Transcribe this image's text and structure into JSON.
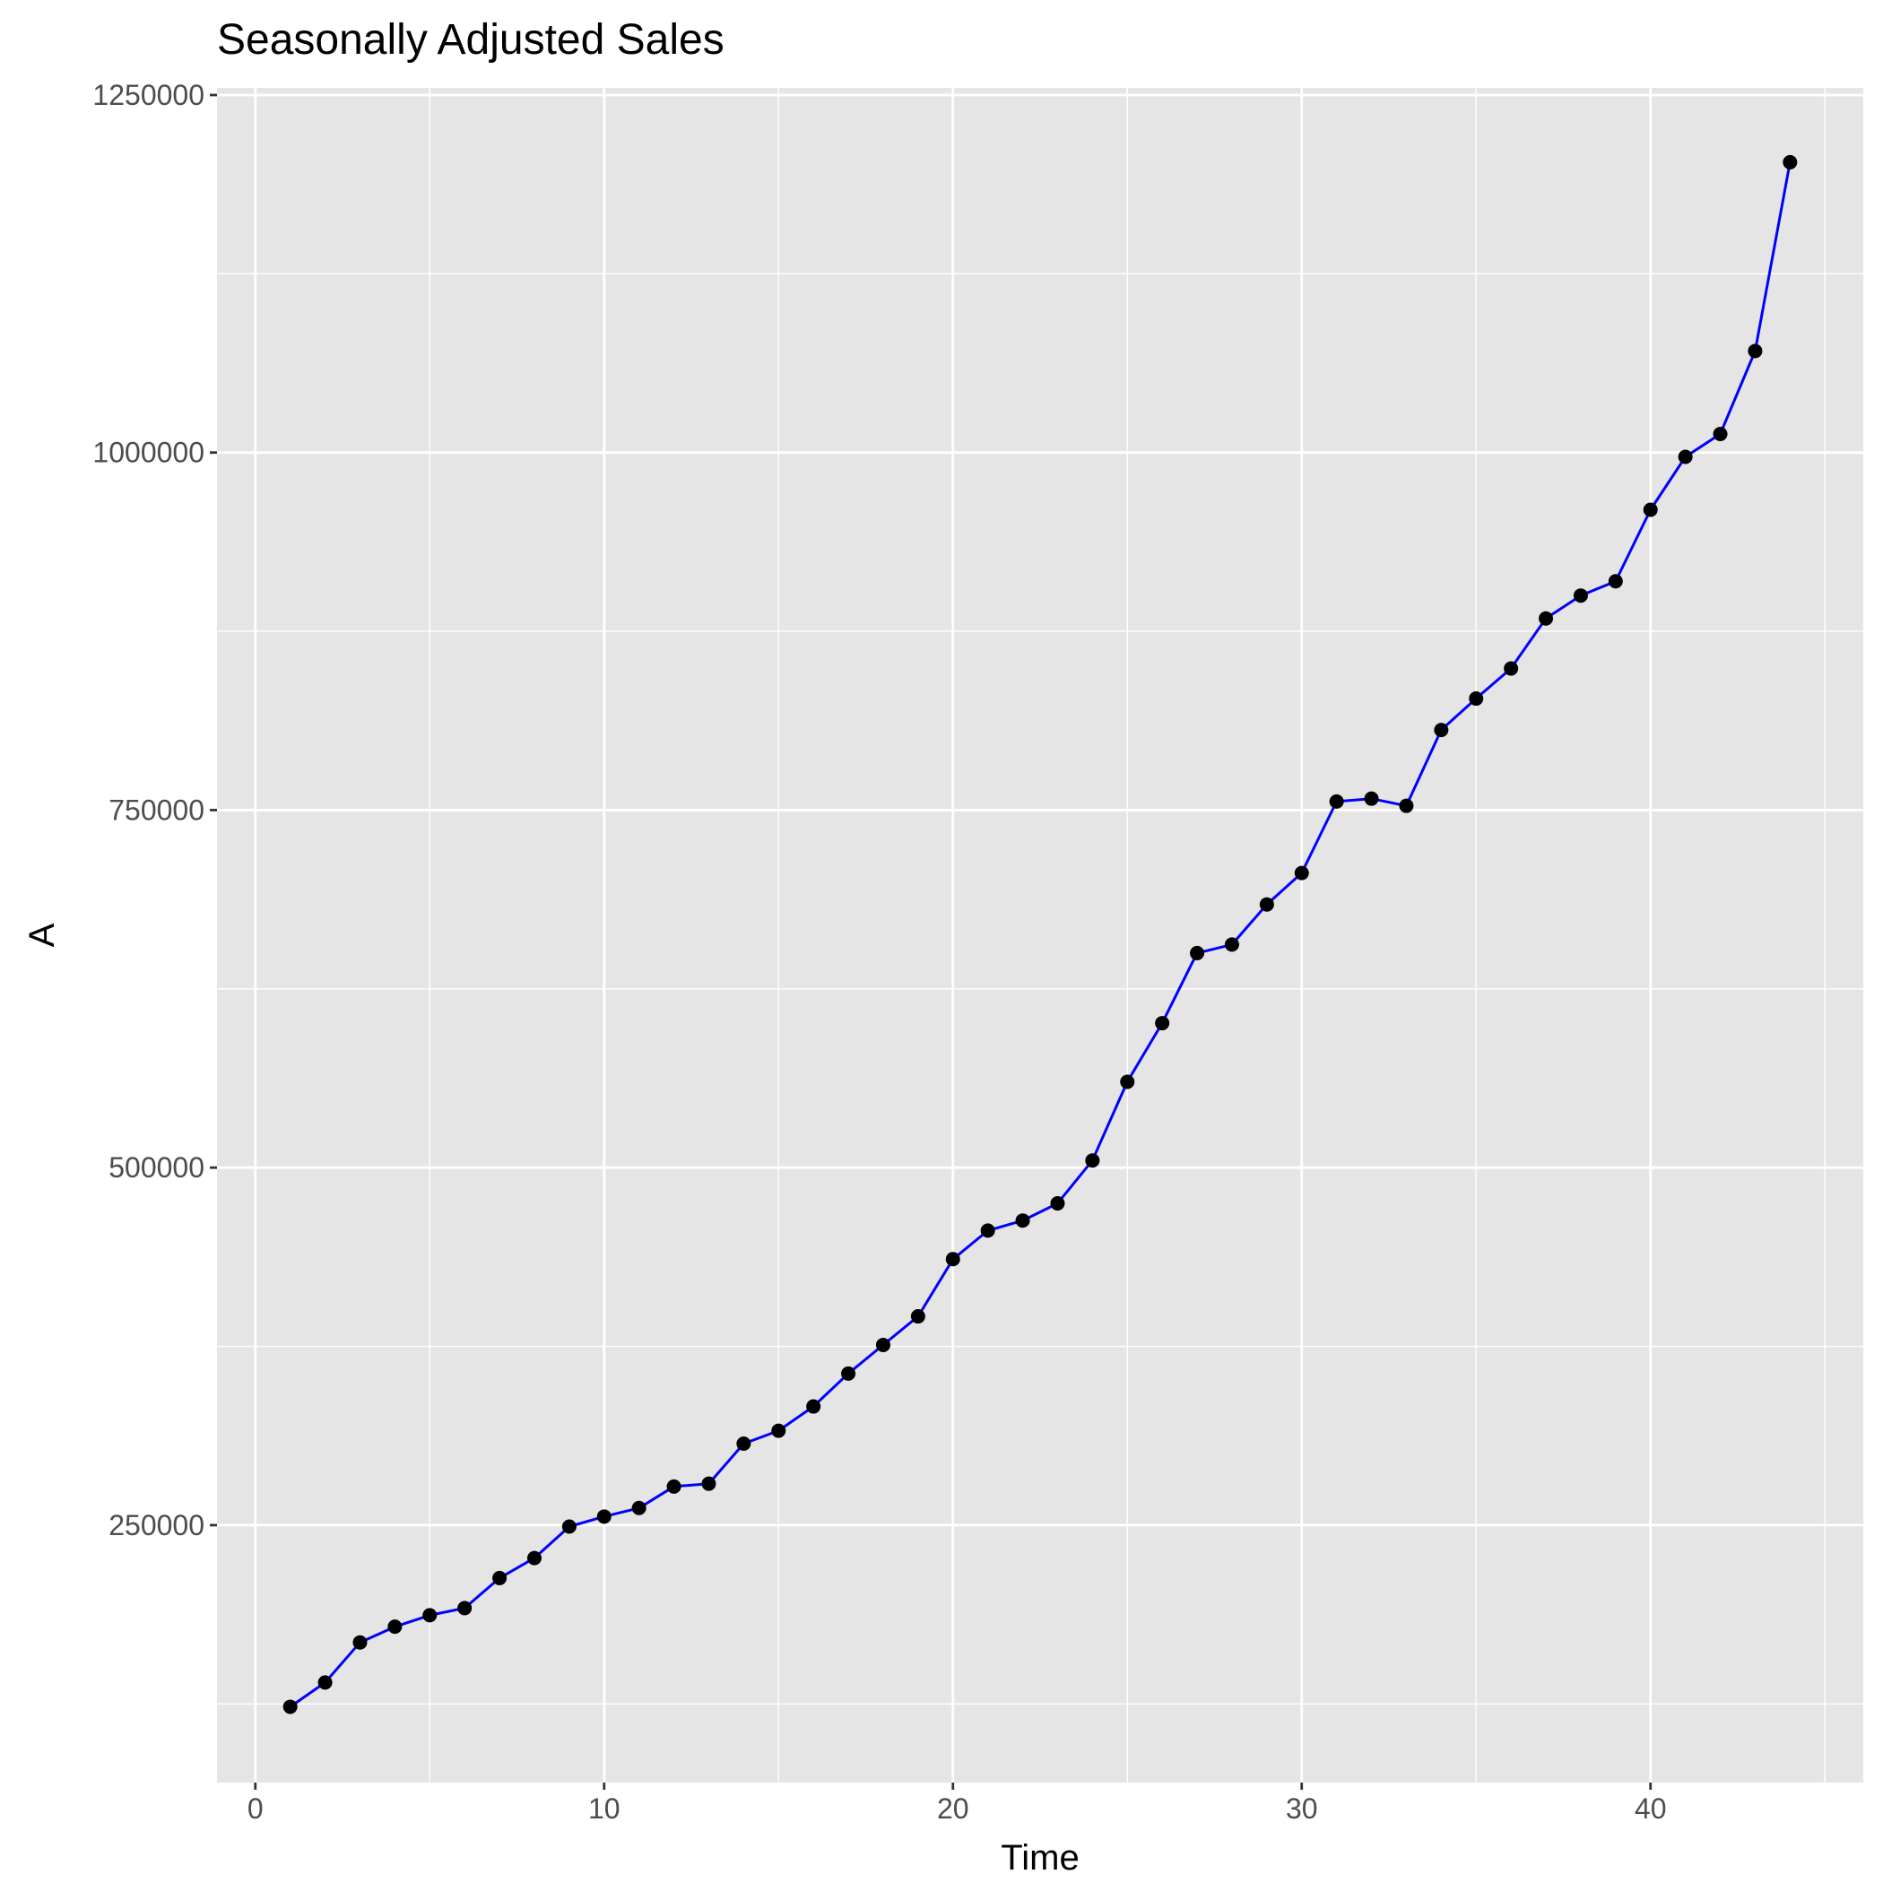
{
  "chart_data": {
    "type": "line",
    "title": "Seasonally Adjusted Sales",
    "xlabel": "Time",
    "ylabel": "A",
    "xlim": [
      -1.1,
      46.1
    ],
    "ylim": [
      70000,
      1255000
    ],
    "x_ticks": [
      0,
      10,
      20,
      30,
      40
    ],
    "x_tick_labels": [
      "0",
      "10",
      "20",
      "30",
      "40"
    ],
    "y_ticks": [
      250000,
      500000,
      750000,
      1000000,
      1250000
    ],
    "y_tick_labels": [
      "250000",
      "500000",
      "750000",
      "1000000",
      "1250000"
    ],
    "x_minor": [
      5,
      15,
      25,
      35,
      45
    ],
    "y_minor": [
      125000,
      375000,
      625000,
      875000,
      1125000
    ],
    "grid": true,
    "legend": "none",
    "colors": {
      "panel_background": "#e5e5e5",
      "grid": "#ffffff",
      "line": "#0000ff",
      "points": "#000000"
    },
    "series": [
      {
        "x": [
          1,
          2,
          3,
          4,
          5,
          6,
          7,
          8,
          9,
          10,
          11,
          12,
          13,
          14,
          15,
          16,
          17,
          18,
          19,
          20,
          21,
          22,
          23,
          24,
          25,
          26,
          27,
          28,
          29,
          30,
          31,
          32,
          33,
          34,
          35,
          36,
          37,
          38,
          39,
          40,
          41,
          42,
          43,
          44
        ],
        "values": [
          123000,
          140000,
          168000,
          179000,
          187000,
          192000,
          213000,
          227000,
          249000,
          256000,
          262000,
          277000,
          279000,
          307000,
          316000,
          333000,
          356000,
          376000,
          396000,
          436000,
          456000,
          463000,
          475000,
          505000,
          560000,
          601000,
          650000,
          656000,
          684000,
          706000,
          756000,
          758000,
          753000,
          806000,
          828000,
          849000,
          884000,
          900000,
          910000,
          960000,
          997000,
          1013000,
          1071000,
          1203000
        ]
      }
    ]
  }
}
